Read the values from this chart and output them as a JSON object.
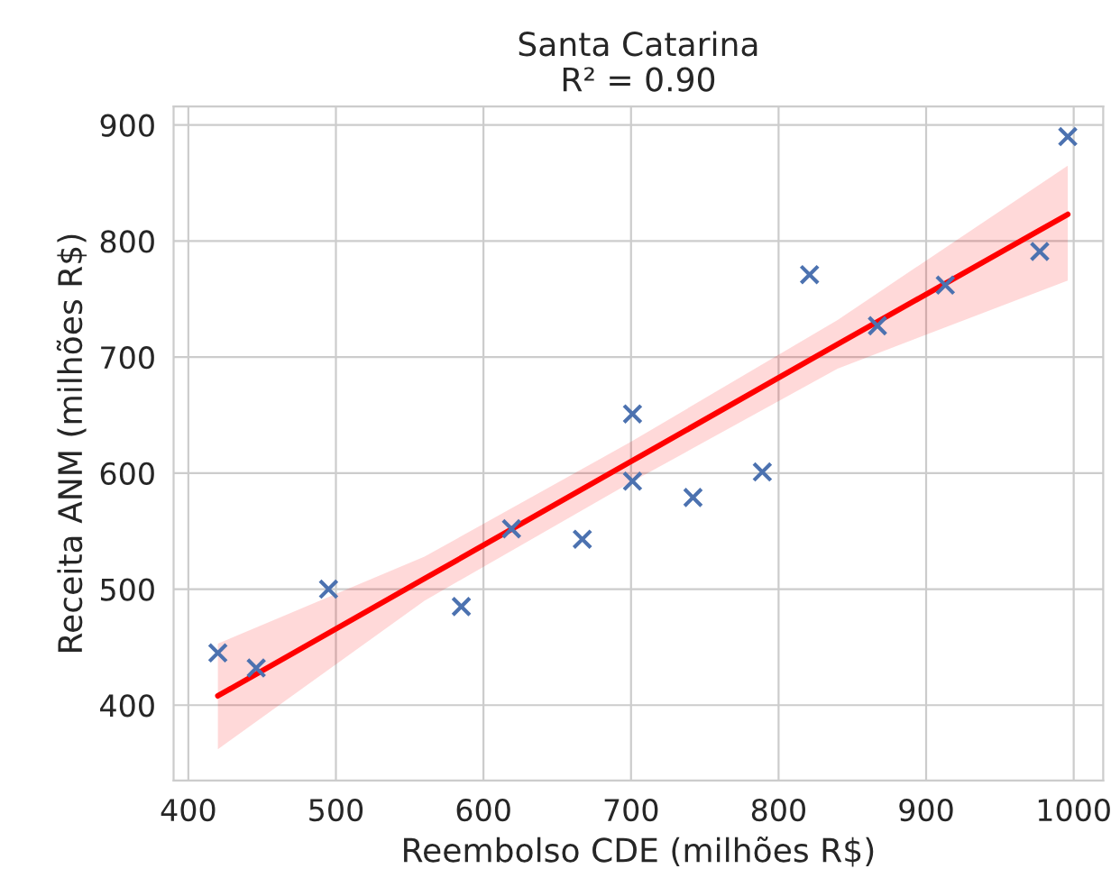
{
  "chart_data": {
    "type": "scatter",
    "title": "Santa Catarina",
    "subtitle": "R² = 0.90",
    "xlabel": "Reembolso CDE (milhões R$)",
    "ylabel": "Receita ANM (milhões R$)",
    "xlim": [
      390,
      1020
    ],
    "ylim": [
      335,
      916
    ],
    "xticks": [
      400,
      500,
      600,
      700,
      800,
      900,
      1000
    ],
    "yticks": [
      400,
      500,
      600,
      700,
      800,
      900
    ],
    "grid": true,
    "series": [
      {
        "marker": "cross",
        "color": "#4c72b0",
        "x": [
          420,
          446,
          495,
          585,
          619,
          667,
          701,
          701,
          742,
          789,
          821,
          867,
          913,
          977,
          996
        ],
        "values": [
          445,
          432,
          500,
          485,
          552,
          543,
          651,
          593,
          579,
          601,
          771,
          727,
          762,
          791,
          890
        ]
      },
      {
        "type": "line",
        "marker": "none",
        "color": "#ff0000",
        "x": [
          420,
          560,
          700,
          840,
          996
        ],
        "values": [
          408,
          509,
          610,
          711,
          823
        ],
        "lower": [
          362,
          490,
          592,
          690,
          766
        ],
        "upper": [
          453,
          528,
          627,
          732,
          865
        ]
      }
    ]
  }
}
